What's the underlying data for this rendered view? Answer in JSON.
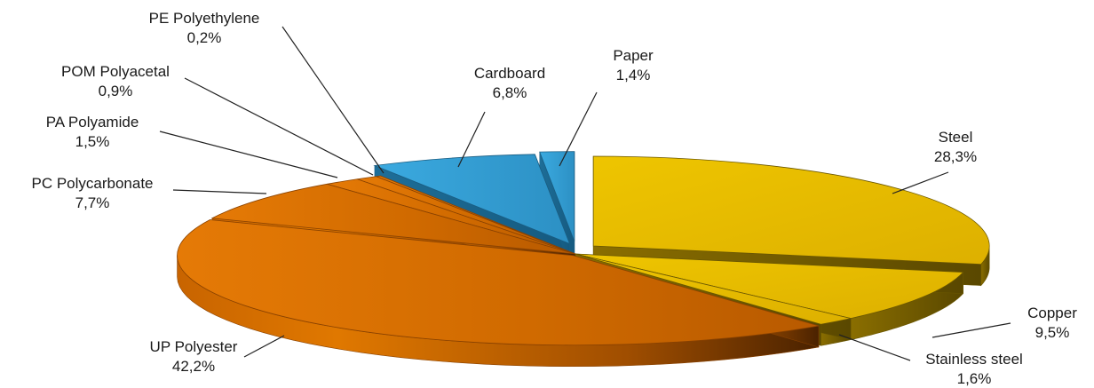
{
  "chart_data": {
    "type": "pie",
    "title": "",
    "style": "3d-exploded",
    "slices": [
      {
        "name": "Steel",
        "value": 28.3,
        "label": "28,3%",
        "color": "#E3B400"
      },
      {
        "name": "Copper",
        "value": 9.5,
        "label": "9,5%",
        "color": "#E3B400"
      },
      {
        "name": "Stainless steel",
        "value": 1.6,
        "label": "1,6%",
        "color": "#E3B400"
      },
      {
        "name": "UP Polyester",
        "value": 42.2,
        "label": "42,2%",
        "color": "#DD7000"
      },
      {
        "name": "PC Polycarbonate",
        "value": 7.7,
        "label": "7,7%",
        "color": "#DD7000"
      },
      {
        "name": "PA Polyamide",
        "value": 1.5,
        "label": "1,5%",
        "color": "#DD7000"
      },
      {
        "name": "POM Polyacetal",
        "value": 0.9,
        "label": "0,9%",
        "color": "#DD7000"
      },
      {
        "name": "PE Polyethylene",
        "value": 0.2,
        "label": "0,2%",
        "color": "#DD7000"
      },
      {
        "name": "Cardboard",
        "value": 6.8,
        "label": "6,8%",
        "color": "#33A0D4"
      },
      {
        "name": "Paper",
        "value": 1.4,
        "label": "1,4%",
        "color": "#33A0D4"
      }
    ]
  }
}
